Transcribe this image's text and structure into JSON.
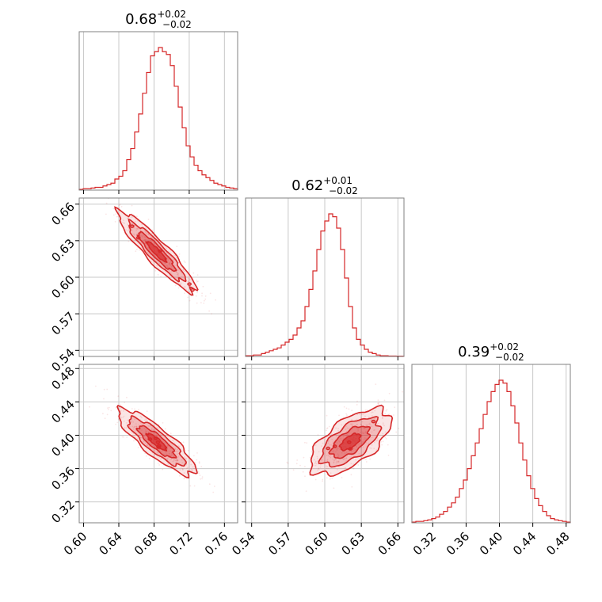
{
  "chart_data": {
    "type": "corner",
    "color": "#d62728",
    "grid": true,
    "parameters": [
      {
        "title": {
          "median": "0.68",
          "plus": "+0.02",
          "minus": "−0.02"
        },
        "range": [
          0.595,
          0.775
        ],
        "ticks": [
          0.6,
          0.64,
          0.68,
          0.72,
          0.76
        ],
        "tick_labels": [
          "0.60",
          "0.64",
          "0.68",
          "0.72",
          "0.76"
        ],
        "hist_values": [
          0.5,
          1,
          1,
          1.5,
          2,
          2,
          3,
          4,
          5,
          8,
          10,
          14,
          22,
          30,
          42,
          55,
          70,
          85,
          97,
          100,
          103,
          100,
          98,
          90,
          75,
          60,
          45,
          32,
          24,
          18,
          14,
          11,
          9,
          7,
          5,
          4,
          3,
          2,
          1.5,
          1
        ]
      },
      {
        "title": {
          "median": "0.62",
          "plus": "+0.01",
          "minus": "−0.02"
        },
        "range": [
          0.535,
          0.665
        ],
        "ticks": [
          0.54,
          0.57,
          0.6,
          0.63,
          0.66
        ],
        "tick_labels": [
          "0.54",
          "0.57",
          "0.60",
          "0.63",
          "0.66"
        ],
        "hist_values": [
          0.5,
          0.5,
          1,
          1,
          2,
          3,
          4,
          5,
          6,
          8,
          10,
          12,
          15,
          20,
          25,
          35,
          47,
          60,
          75,
          88,
          95,
          100,
          98,
          90,
          75,
          55,
          35,
          20,
          12,
          8,
          5,
          3,
          2,
          1,
          0.5,
          0.5,
          0.3,
          0.3,
          0.2,
          0.2
        ]
      },
      {
        "title": {
          "median": "0.39",
          "plus": "+0.02",
          "minus": "−0.02"
        },
        "range": [
          0.295,
          0.485
        ],
        "ticks": [
          0.32,
          0.36,
          0.4,
          0.44,
          0.48
        ],
        "tick_labels": [
          "0.32",
          "0.36",
          "0.40",
          "0.44",
          "0.48"
        ],
        "hist_values": [
          0.5,
          1,
          1,
          1.5,
          2,
          3,
          4,
          6,
          8,
          11,
          14,
          18,
          24,
          30,
          38,
          47,
          56,
          66,
          76,
          85,
          92,
          97,
          100,
          98,
          92,
          82,
          70,
          56,
          44,
          33,
          24,
          17,
          12,
          8,
          5,
          3,
          2,
          1.5,
          1,
          0.5
        ]
      }
    ],
    "pairs": [
      {
        "x_param": 0,
        "y_param": 1,
        "center": [
          0.683,
          0.621
        ],
        "sigma": [
          0.02,
          0.015
        ],
        "rho": -0.92
      },
      {
        "x_param": 0,
        "y_param": 2,
        "center": [
          0.683,
          0.392
        ],
        "sigma": [
          0.02,
          0.018
        ],
        "rho": -0.85
      },
      {
        "x_param": 1,
        "y_param": 2,
        "center": [
          0.621,
          0.392
        ],
        "sigma": [
          0.015,
          0.018
        ],
        "rho": 0.62
      }
    ]
  }
}
